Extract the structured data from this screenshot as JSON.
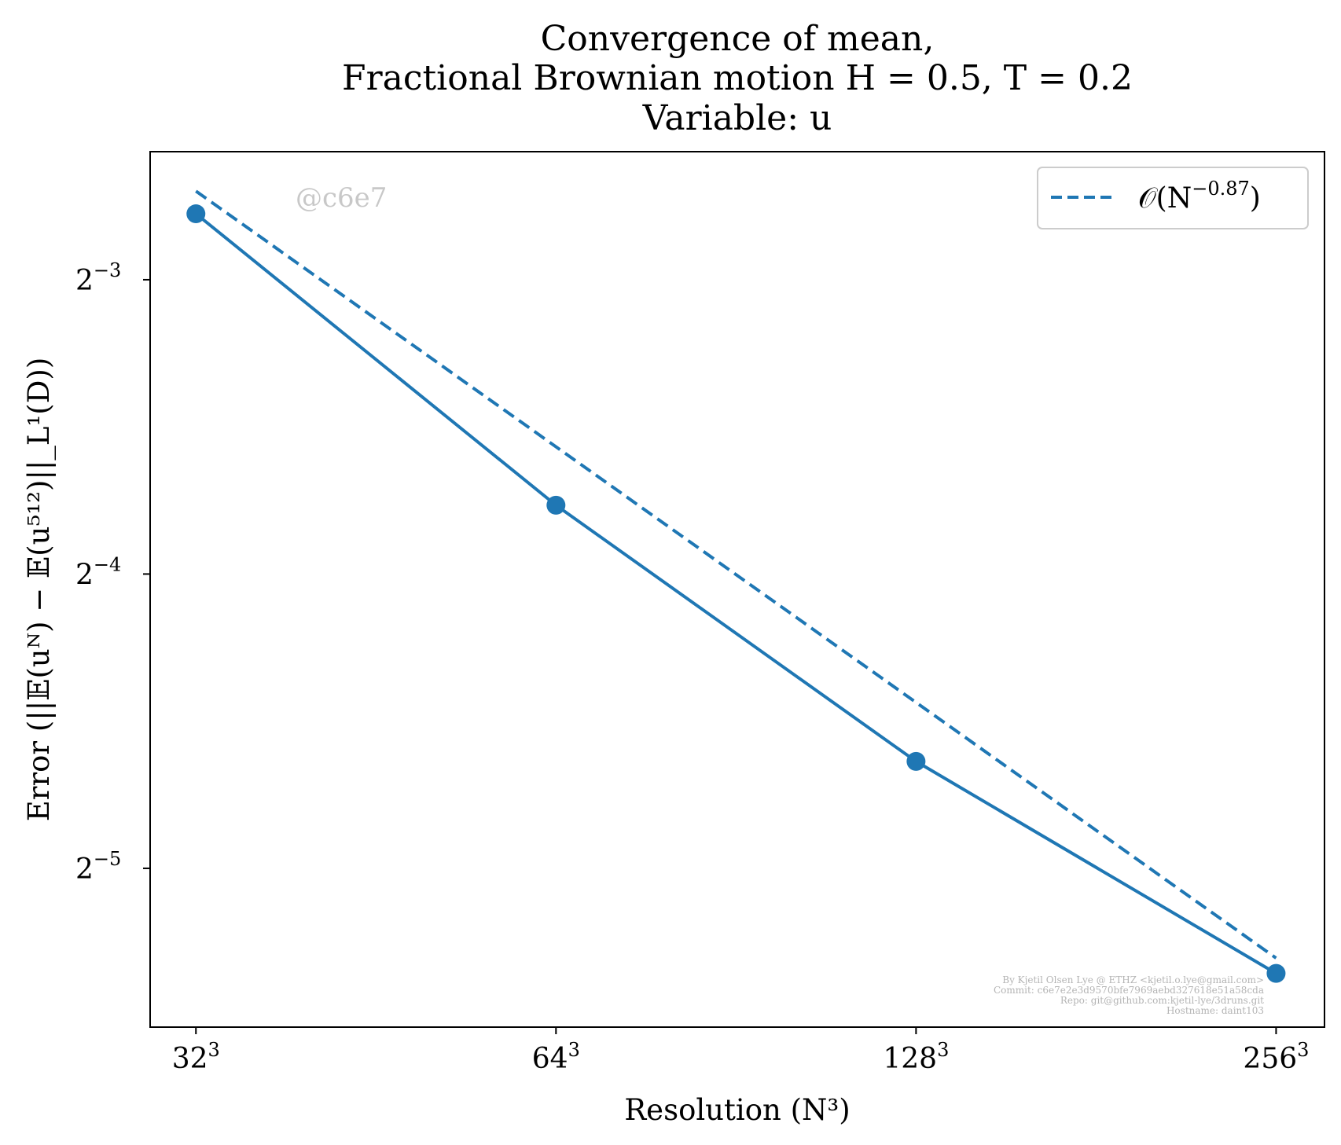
{
  "colors": {
    "series": "#1f77b4",
    "axes": "#000000",
    "watermark": "#c8c8c8",
    "footer": "#b4b4b4"
  },
  "chart_data": {
    "type": "line",
    "title": {
      "line1": "Convergence of mean,",
      "line2": "Fractional Brownian motion H = 0.5, T = 0.2",
      "line3": "Variable: u"
    },
    "xlabel": "Resolution (N³)",
    "ylabel": "Error (||𝔼(uᴺ) − 𝔼(u⁵¹²)||_L¹(D))",
    "x_scale": "log2",
    "y_scale": "log2",
    "x_ticks": [
      {
        "value": 32,
        "base": "32",
        "exp": "3"
      },
      {
        "value": 64,
        "base": "64",
        "exp": "3"
      },
      {
        "value": 128,
        "base": "128",
        "exp": "3"
      },
      {
        "value": 256,
        "base": "256",
        "exp": "3"
      }
    ],
    "y_ticks": [
      {
        "value": 0.125,
        "base": "2",
        "exp": "−3"
      },
      {
        "value": 0.0625,
        "base": "2",
        "exp": "−4"
      },
      {
        "value": 0.03125,
        "base": "2",
        "exp": "−5"
      }
    ],
    "xlim": [
      29.3,
      281
    ],
    "ylim": [
      0.0215,
      0.169
    ],
    "series": [
      {
        "style": "solid-markers",
        "x": [
          32,
          64,
          128,
          256
        ],
        "y": [
          0.146,
          0.0735,
          0.0402,
          0.0244
        ]
      },
      {
        "name": "𝒪(N^−0.87)",
        "style": "dashed",
        "x": [
          32,
          256
        ],
        "y": [
          0.154,
          0.0253
        ]
      }
    ],
    "legend": {
      "position": "top-right",
      "entry_prefix": "𝒪(N",
      "entry_exp": "−0.87",
      "entry_suffix": ")"
    },
    "grid": false,
    "watermark": "@c6e7",
    "footer_lines": [
      "By Kjetil Olsen Lye @ ETHZ <kjetil.o.lye@gmail.com>",
      "Commit: c6e7e2e3d9570bfe7969aebd327618e51a58cda",
      "Repo: git@github.com:kjetil-lye/3druns.git",
      "Hostname: daint103"
    ]
  }
}
